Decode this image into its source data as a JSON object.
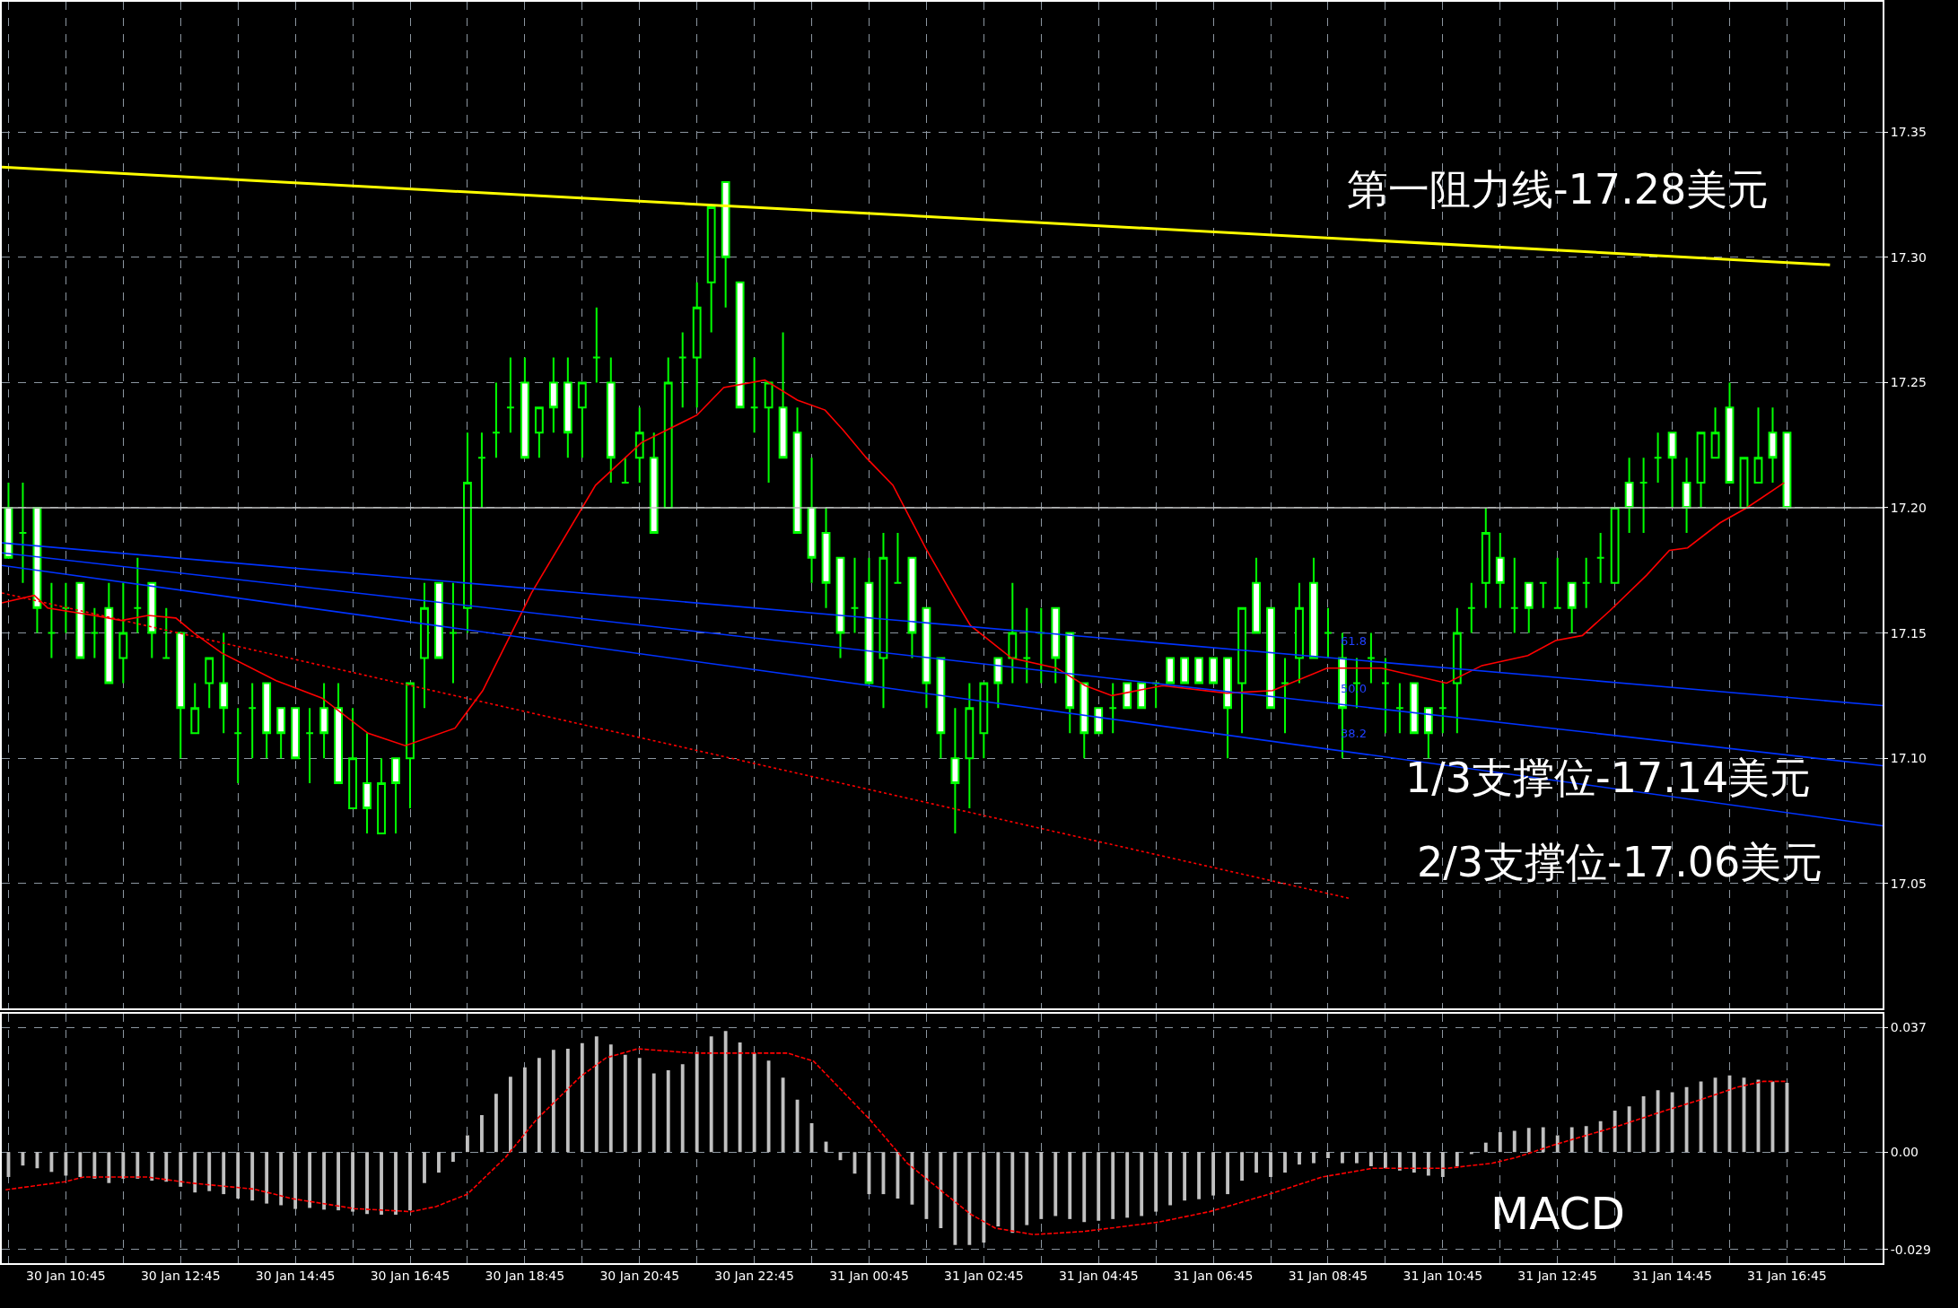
{
  "chart_data": [
    {
      "type": "candlestick",
      "color": "#00ff00",
      "x": [
        "--01-30T09:45",
        "--01-30T10:00",
        "--01-30T10:15",
        "--01-30T10:30",
        "--01-30T10:45",
        "--01-30T11:00",
        "--01-30T11:15",
        "--01-30T11:30",
        "--01-30T11:45",
        "--01-30T12:00",
        "--01-30T12:15",
        "--01-30T12:30",
        "--01-30T12:45",
        "--01-30T13:00",
        "--01-30T13:15",
        "--01-30T13:30",
        "--01-30T13:45",
        "--01-30T14:00",
        "--01-30T14:15",
        "--01-30T14:30",
        "--01-30T14:45",
        "--01-30T15:00",
        "--01-30T15:15",
        "--01-30T15:30",
        "--01-30T15:45",
        "--01-30T16:00",
        "--01-30T16:15",
        "--01-30T16:30",
        "--01-30T16:45",
        "--01-30T17:00",
        "--01-30T17:15",
        "--01-30T17:30",
        "--01-30T17:45",
        "--01-30T18:00",
        "--01-30T18:15",
        "--01-30T18:30",
        "--01-30T18:45",
        "--01-30T19:00",
        "--01-30T19:15",
        "--01-30T19:30",
        "--01-30T19:45",
        "--01-30T20:00",
        "--01-30T20:15",
        "--01-30T20:30",
        "--01-30T20:45",
        "--01-30T21:00",
        "--01-30T21:15",
        "--01-30T21:30",
        "--01-30T21:45",
        "--01-30T22:00",
        "--01-30T22:15",
        "--01-30T22:30",
        "--01-30T22:45",
        "--01-30T23:00",
        "--01-30T23:15",
        "--01-30T23:30",
        "--01-30T23:45",
        "--01-31T00:00",
        "--01-31T00:15",
        "--01-31T00:30",
        "--01-31T00:45",
        "--01-31T01:00",
        "--01-31T01:15",
        "--01-31T01:30",
        "--01-31T01:45",
        "--01-31T02:00",
        "--01-31T02:15",
        "--01-31T02:30",
        "--01-31T02:45",
        "--01-31T03:00",
        "--01-31T03:15",
        "--01-31T03:30",
        "--01-31T03:45",
        "--01-31T04:00",
        "--01-31T04:15",
        "--01-31T04:30",
        "--01-31T04:45",
        "--01-31T05:00",
        "--01-31T05:15",
        "--01-31T05:30",
        "--01-31T05:45",
        "--01-31T06:00",
        "--01-31T06:15",
        "--01-31T06:30",
        "--01-31T06:45",
        "--01-31T07:00",
        "--01-31T07:15",
        "--01-31T07:30",
        "--01-31T07:45",
        "--01-31T08:00",
        "--01-31T08:15",
        "--01-31T08:30",
        "--01-31T08:45",
        "--01-31T09:00",
        "--01-31T09:15",
        "--01-31T09:30",
        "--01-31T09:45",
        "--01-31T10:00",
        "--01-31T10:15",
        "--01-31T10:30",
        "--01-31T10:45",
        "--01-31T11:00",
        "--01-31T11:15",
        "--01-31T11:30",
        "--01-31T11:45",
        "--01-31T12:00",
        "--01-31T12:15",
        "--01-31T12:30",
        "--01-31T12:45",
        "--01-31T13:00",
        "--01-31T13:15",
        "--01-31T13:30",
        "--01-31T13:45",
        "--01-31T14:00",
        "--01-31T14:15",
        "--01-31T14:30",
        "--01-31T14:45",
        "--01-31T15:00",
        "--01-31T15:15",
        "--01-31T15:30",
        "--01-31T15:45",
        "--01-31T16:00",
        "--01-31T16:15",
        "--01-31T16:30",
        "--01-31T16:45"
      ],
      "ohlc": [
        [
          17.2,
          17.21,
          17.18,
          17.18
        ],
        [
          17.19,
          17.21,
          17.17,
          17.19
        ],
        [
          17.2,
          17.2,
          17.15,
          17.16
        ],
        [
          17.15,
          17.17,
          17.14,
          17.15
        ],
        [
          17.16,
          17.17,
          17.15,
          17.16
        ],
        [
          17.17,
          17.17,
          17.14,
          17.14
        ],
        [
          17.15,
          17.16,
          17.14,
          17.15
        ],
        [
          17.16,
          17.17,
          17.13,
          17.13
        ],
        [
          17.14,
          17.17,
          17.13,
          17.15
        ],
        [
          17.16,
          17.18,
          17.15,
          17.16
        ],
        [
          17.17,
          17.17,
          17.14,
          17.15
        ],
        [
          17.14,
          17.16,
          17.14,
          17.14
        ],
        [
          17.15,
          17.15,
          17.1,
          17.12
        ],
        [
          17.11,
          17.13,
          17.11,
          17.12
        ],
        [
          17.13,
          17.14,
          17.12,
          17.14
        ],
        [
          17.13,
          17.15,
          17.11,
          17.12
        ],
        [
          17.11,
          17.12,
          17.09,
          17.11
        ],
        [
          17.12,
          17.13,
          17.1,
          17.12
        ],
        [
          17.13,
          17.13,
          17.1,
          17.11
        ],
        [
          17.12,
          17.12,
          17.1,
          17.11
        ],
        [
          17.12,
          17.12,
          17.1,
          17.1
        ],
        [
          17.11,
          17.12,
          17.09,
          17.11
        ],
        [
          17.12,
          17.13,
          17.1,
          17.11
        ],
        [
          17.12,
          17.13,
          17.09,
          17.09
        ],
        [
          17.08,
          17.12,
          17.08,
          17.1
        ],
        [
          17.09,
          17.11,
          17.07,
          17.08
        ],
        [
          17.07,
          17.1,
          17.07,
          17.09
        ],
        [
          17.1,
          17.1,
          17.07,
          17.09
        ],
        [
          17.1,
          17.13,
          17.08,
          17.13
        ],
        [
          17.14,
          17.17,
          17.12,
          17.16
        ],
        [
          17.17,
          17.17,
          17.14,
          17.14
        ],
        [
          17.15,
          17.17,
          17.13,
          17.15
        ],
        [
          17.16,
          17.23,
          17.15,
          17.21
        ],
        [
          17.22,
          17.23,
          17.2,
          17.22
        ],
        [
          17.23,
          17.25,
          17.22,
          17.23
        ],
        [
          17.24,
          17.26,
          17.23,
          17.24
        ],
        [
          17.25,
          17.26,
          17.22,
          17.22
        ],
        [
          17.23,
          17.24,
          17.22,
          17.24
        ],
        [
          17.25,
          17.26,
          17.23,
          17.24
        ],
        [
          17.25,
          17.26,
          17.22,
          17.23
        ],
        [
          17.24,
          17.25,
          17.22,
          17.25
        ],
        [
          17.26,
          17.28,
          17.25,
          17.26
        ],
        [
          17.25,
          17.26,
          17.21,
          17.22
        ],
        [
          17.21,
          17.22,
          17.21,
          17.21
        ],
        [
          17.22,
          17.24,
          17.21,
          17.23
        ],
        [
          17.22,
          17.23,
          17.19,
          17.19
        ],
        [
          17.2,
          17.26,
          17.2,
          17.25
        ],
        [
          17.26,
          17.27,
          17.24,
          17.26
        ],
        [
          17.26,
          17.29,
          17.24,
          17.28
        ],
        [
          17.29,
          17.32,
          17.27,
          17.32
        ],
        [
          17.33,
          17.33,
          17.28,
          17.3
        ],
        [
          17.29,
          17.29,
          17.24,
          17.24
        ],
        [
          17.24,
          17.26,
          17.23,
          17.24
        ],
        [
          17.24,
          17.25,
          17.21,
          17.25
        ],
        [
          17.24,
          17.27,
          17.22,
          17.22
        ],
        [
          17.23,
          17.24,
          17.19,
          17.19
        ],
        [
          17.2,
          17.22,
          17.17,
          17.18
        ],
        [
          17.19,
          17.2,
          17.16,
          17.17
        ],
        [
          17.18,
          17.18,
          17.14,
          17.15
        ],
        [
          17.16,
          17.18,
          17.15,
          17.16
        ],
        [
          17.17,
          17.18,
          17.13,
          17.13
        ],
        [
          17.14,
          17.19,
          17.12,
          17.18
        ],
        [
          17.17,
          17.19,
          17.17,
          17.17
        ],
        [
          17.18,
          17.18,
          17.14,
          17.15
        ],
        [
          17.16,
          17.16,
          17.12,
          17.13
        ],
        [
          17.14,
          17.14,
          17.1,
          17.11
        ],
        [
          17.1,
          17.12,
          17.07,
          17.09
        ],
        [
          17.1,
          17.13,
          17.08,
          17.12
        ],
        [
          17.11,
          17.13,
          17.1,
          17.13
        ],
        [
          17.14,
          17.14,
          17.12,
          17.13
        ],
        [
          17.14,
          17.17,
          17.13,
          17.15
        ],
        [
          17.14,
          17.16,
          17.13,
          17.14
        ],
        [
          17.15,
          17.16,
          17.13,
          17.15
        ],
        [
          17.16,
          17.16,
          17.13,
          17.14
        ],
        [
          17.15,
          17.15,
          17.11,
          17.12
        ],
        [
          17.13,
          17.13,
          17.1,
          17.11
        ],
        [
          17.12,
          17.12,
          17.11,
          17.11
        ],
        [
          17.12,
          17.13,
          17.11,
          17.12
        ],
        [
          17.13,
          17.13,
          17.12,
          17.12
        ],
        [
          17.13,
          17.13,
          17.12,
          17.12
        ],
        [
          17.13,
          17.13,
          17.12,
          17.13
        ],
        [
          17.14,
          17.14,
          17.13,
          17.13
        ],
        [
          17.14,
          17.14,
          17.13,
          17.13
        ],
        [
          17.14,
          17.14,
          17.13,
          17.13
        ],
        [
          17.14,
          17.14,
          17.13,
          17.13
        ],
        [
          17.14,
          17.14,
          17.1,
          17.12
        ],
        [
          17.13,
          17.16,
          17.11,
          17.16
        ],
        [
          17.17,
          17.18,
          17.15,
          17.15
        ],
        [
          17.16,
          17.16,
          17.12,
          17.12
        ],
        [
          17.13,
          17.14,
          17.11,
          17.13
        ],
        [
          17.14,
          17.17,
          17.13,
          17.16
        ],
        [
          17.17,
          17.18,
          17.14,
          17.14
        ],
        [
          17.15,
          17.16,
          17.14,
          17.15
        ],
        [
          17.14,
          17.15,
          17.1,
          17.12
        ],
        [
          17.13,
          17.14,
          17.12,
          17.13
        ],
        [
          17.14,
          17.15,
          17.13,
          17.14
        ],
        [
          17.13,
          17.14,
          17.11,
          17.13
        ],
        [
          17.12,
          17.13,
          17.11,
          17.12
        ],
        [
          17.13,
          17.13,
          17.11,
          17.11
        ],
        [
          17.12,
          17.12,
          17.1,
          17.11
        ],
        [
          17.12,
          17.13,
          17.11,
          17.12
        ],
        [
          17.13,
          17.16,
          17.11,
          17.15
        ],
        [
          17.16,
          17.17,
          17.15,
          17.16
        ],
        [
          17.17,
          17.2,
          17.16,
          17.19
        ],
        [
          17.18,
          17.19,
          17.16,
          17.17
        ],
        [
          17.16,
          17.18,
          17.15,
          17.16
        ],
        [
          17.17,
          17.17,
          17.15,
          17.16
        ],
        [
          17.17,
          17.17,
          17.16,
          17.17
        ],
        [
          17.16,
          17.18,
          17.16,
          17.16
        ],
        [
          17.17,
          17.17,
          17.15,
          17.16
        ],
        [
          17.17,
          17.18,
          17.16,
          17.17
        ],
        [
          17.18,
          17.19,
          17.17,
          17.18
        ],
        [
          17.17,
          17.2,
          17.17,
          17.2
        ],
        [
          17.21,
          17.22,
          17.19,
          17.2
        ],
        [
          17.21,
          17.22,
          17.19,
          17.21
        ],
        [
          17.22,
          17.23,
          17.21,
          17.22
        ],
        [
          17.23,
          17.23,
          17.2,
          17.22
        ],
        [
          17.21,
          17.22,
          17.19,
          17.2
        ],
        [
          17.21,
          17.23,
          17.2,
          17.23
        ],
        [
          17.22,
          17.24,
          17.22,
          17.23
        ],
        [
          17.24,
          17.25,
          17.21,
          17.21
        ],
        [
          17.2,
          17.22,
          17.2,
          17.22
        ],
        [
          17.21,
          17.24,
          17.21,
          17.22
        ],
        [
          17.23,
          17.24,
          17.21,
          17.22
        ],
        [
          17.23,
          17.23,
          17.2,
          17.2
        ]
      ],
      "series": [
        {
          "type": "line",
          "color": "#ff0000",
          "line_style": "solid",
          "x": [
            "--01-30T09:38",
            "--01-30T10:12",
            "--01-30T10:26",
            "--01-30T11:14",
            "--01-30T11:43",
            "--01-30T12:11",
            "--01-30T12:40",
            "--01-30T12:59",
            "--01-30T13:28",
            "--01-30T14:25",
            "--01-30T15:13",
            "--01-30T16:01",
            "--01-30T16:40",
            "--01-30T17:32",
            "--01-30T18:01",
            "--01-30T18:52",
            "--01-30T19:59",
            "--01-30T20:47",
            "--01-30T21:45",
            "--01-30T22:13",
            "--01-30T22:56",
            "--01-30T23:30",
            "--01-30T23:59",
            "--01-31T00:18",
            "--01-31T00:42",
            "--01-31T01:10",
            "--01-31T01:44",
            "--01-31T02:17",
            "--01-31T02:31",
            "--01-31T03:14",
            "--01-31T04:01",
            "--01-31T04:31",
            "--01-31T04:59",
            "--01-31T05:52",
            "--01-31T06:59",
            "--01-31T07:47",
            "--01-31T08:44",
            "--01-31T09:41",
            "--01-31T10:49",
            "--01-31T11:26",
            "--01-31T12:14",
            "--01-31T12:43",
            "--01-31T13:11",
            "--01-31T13:40",
            "--01-31T14:18",
            "--01-31T14:42",
            "--01-31T15:01",
            "--01-31T15:35",
            "--01-31T16:03",
            "--01-31T16:42"
          ],
          "values": [
            17.162,
            17.165,
            17.16,
            17.157,
            17.155,
            17.157,
            17.156,
            17.15,
            17.142,
            17.131,
            17.124,
            17.11,
            17.105,
            17.112,
            17.127,
            17.166,
            17.209,
            17.226,
            17.237,
            17.248,
            17.251,
            17.243,
            17.239,
            17.231,
            17.22,
            17.209,
            17.184,
            17.162,
            17.153,
            17.14,
            17.136,
            17.129,
            17.125,
            17.129,
            17.126,
            17.127,
            17.136,
            17.136,
            17.13,
            17.137,
            17.141,
            17.147,
            17.149,
            17.159,
            17.173,
            17.183,
            17.184,
            17.194,
            17.2,
            17.21
          ]
        },
        {
          "type": "line",
          "color": "#ff0000",
          "line_style": "dotted",
          "x": [
            "--01-30T09:38",
            "--01-31T09:08"
          ],
          "values": [
            17.166,
            17.044
          ]
        },
        {
          "type": "line",
          "color": "#0033ff",
          "line_style": "solid",
          "x": [
            "--01-30T09:38",
            "--01-31T18:25"
          ],
          "values": [
            17.186,
            17.121
          ]
        },
        {
          "type": "line",
          "color": "#0033ff",
          "line_style": "solid",
          "x": [
            "--01-30T09:38",
            "--01-31T18:25"
          ],
          "values": [
            17.182,
            17.097
          ]
        },
        {
          "type": "line",
          "color": "#0033ff",
          "line_style": "solid",
          "x": [
            "--01-30T09:38",
            "--01-31T18:25"
          ],
          "values": [
            17.177,
            17.073
          ]
        },
        {
          "type": "line",
          "color": "#ffff00",
          "line_style": "solid",
          "x": [
            "--01-30T09:38",
            "--01-31T17:30"
          ],
          "values": [
            17.336,
            17.297
          ]
        }
      ],
      "xlim": [
        "--01-30T09:38",
        "--01-31T18:25"
      ],
      "xticks": [
        {
          "value": "--01-30T09:45",
          "label": null
        },
        {
          "value": "--01-30T10:45",
          "label": "30 Jan 10:45"
        },
        {
          "value": "--01-30T11:45",
          "label": null
        },
        {
          "value": "--01-30T12:45",
          "label": "30 Jan 12:45"
        },
        {
          "value": "--01-30T13:45",
          "label": null
        },
        {
          "value": "--01-30T14:45",
          "label": "30 Jan 14:45"
        },
        {
          "value": "--01-30T15:45",
          "label": null
        },
        {
          "value": "--01-30T16:45",
          "label": "30 Jan 16:45"
        },
        {
          "value": "--01-30T17:45",
          "label": null
        },
        {
          "value": "--01-30T18:45",
          "label": "30 Jan 18:45"
        },
        {
          "value": "--01-30T19:45",
          "label": null
        },
        {
          "value": "--01-30T20:45",
          "label": "30 Jan 20:45"
        },
        {
          "value": "--01-30T21:45",
          "label": null
        },
        {
          "value": "--01-30T22:45",
          "label": "30 Jan 22:45"
        },
        {
          "value": "--01-30T23:45",
          "label": null
        },
        {
          "value": "--01-31T00:45",
          "label": "31 Jan 00:45"
        },
        {
          "value": "--01-31T01:45",
          "label": null
        },
        {
          "value": "--01-31T02:45",
          "label": "31 Jan 02:45"
        },
        {
          "value": "--01-31T03:45",
          "label": null
        },
        {
          "value": "--01-31T04:45",
          "label": "31 Jan 04:45"
        },
        {
          "value": "--01-31T05:45",
          "label": null
        },
        {
          "value": "--01-31T06:45",
          "label": "31 Jan 06:45"
        },
        {
          "value": "--01-31T07:45",
          "label": null
        },
        {
          "value": "--01-31T08:45",
          "label": "31 Jan 08:45"
        },
        {
          "value": "--01-31T09:45",
          "label": null
        },
        {
          "value": "--01-31T10:45",
          "label": "31 Jan 10:45"
        },
        {
          "value": "--01-31T11:45",
          "label": null
        },
        {
          "value": "--01-31T12:45",
          "label": "31 Jan 12:45"
        },
        {
          "value": "--01-31T13:45",
          "label": null
        },
        {
          "value": "--01-31T14:45",
          "label": "31 Jan 14:45"
        },
        {
          "value": "--01-31T15:45",
          "label": null
        },
        {
          "value": "--01-31T16:45",
          "label": "31 Jan 16:45"
        },
        {
          "value": "--01-31T17:45",
          "label": null
        }
      ],
      "ylim": [
        17.0,
        17.402
      ],
      "yticks": [
        17.05,
        {
          "value": 17.1,
          "label": "17.10"
        },
        17.15,
        {
          "value": 17.2,
          "label": "17.20"
        },
        17.25,
        {
          "value": 17.3,
          "label": "17.30"
        },
        17.35
      ],
      "tick_labels": "y",
      "grid": true,
      "ref_lines": [
        {
          "axis": "y",
          "value": 17.2,
          "color": "#c0c0c0"
        }
      ],
      "annotations": [
        "第一阻力线-17.28美元",
        "1/3支撑位-17.14美元",
        "2/3支撑位-17.06美元",
        "61.8",
        "50.0",
        "38.2"
      ]
    },
    {
      "type": "bar",
      "series": [
        {
          "type": "bar",
          "color": "#c0c0c0",
          "x": [
            "--01-30T09:45",
            "--01-30T10:00",
            "--01-30T10:15",
            "--01-30T10:30",
            "--01-30T10:45",
            "--01-30T11:00",
            "--01-30T11:15",
            "--01-30T11:30",
            "--01-30T11:45",
            "--01-30T12:00",
            "--01-30T12:15",
            "--01-30T12:30",
            "--01-30T12:45",
            "--01-30T13:00",
            "--01-30T13:15",
            "--01-30T13:30",
            "--01-30T13:45",
            "--01-30T14:00",
            "--01-30T14:15",
            "--01-30T14:30",
            "--01-30T14:45",
            "--01-30T15:00",
            "--01-30T15:15",
            "--01-30T15:30",
            "--01-30T15:45",
            "--01-30T16:00",
            "--01-30T16:15",
            "--01-30T16:30",
            "--01-30T16:45",
            "--01-30T17:00",
            "--01-30T17:15",
            "--01-30T17:30",
            "--01-30T17:45",
            "--01-30T18:00",
            "--01-30T18:15",
            "--01-30T18:30",
            "--01-30T18:45",
            "--01-30T19:00",
            "--01-30T19:15",
            "--01-30T19:30",
            "--01-30T19:45",
            "--01-30T20:00",
            "--01-30T20:15",
            "--01-30T20:30",
            "--01-30T20:45",
            "--01-30T21:00",
            "--01-30T21:15",
            "--01-30T21:30",
            "--01-30T21:45",
            "--01-30T22:00",
            "--01-30T22:15",
            "--01-30T22:30",
            "--01-30T22:45",
            "--01-30T23:00",
            "--01-30T23:15",
            "--01-30T23:30",
            "--01-30T23:45",
            "--01-31T00:00",
            "--01-31T00:15",
            "--01-31T00:30",
            "--01-31T00:45",
            "--01-31T01:00",
            "--01-31T01:15",
            "--01-31T01:30",
            "--01-31T01:45",
            "--01-31T02:00",
            "--01-31T02:15",
            "--01-31T02:30",
            "--01-31T02:45",
            "--01-31T03:00",
            "--01-31T03:15",
            "--01-31T03:30",
            "--01-31T03:45",
            "--01-31T04:00",
            "--01-31T04:15",
            "--01-31T04:30",
            "--01-31T04:45",
            "--01-31T05:00",
            "--01-31T05:15",
            "--01-31T05:30",
            "--01-31T05:45",
            "--01-31T06:00",
            "--01-31T06:15",
            "--01-31T06:30",
            "--01-31T06:45",
            "--01-31T07:00",
            "--01-31T07:15",
            "--01-31T07:30",
            "--01-31T07:45",
            "--01-31T08:00",
            "--01-31T08:15",
            "--01-31T08:30",
            "--01-31T08:45",
            "--01-31T09:00",
            "--01-31T09:15",
            "--01-31T09:30",
            "--01-31T09:45",
            "--01-31T10:00",
            "--01-31T10:15",
            "--01-31T10:30",
            "--01-31T10:45",
            "--01-31T11:00",
            "--01-31T11:15",
            "--01-31T11:30",
            "--01-31T11:45",
            "--01-31T12:00",
            "--01-31T12:15",
            "--01-31T12:30",
            "--01-31T12:45",
            "--01-31T13:00",
            "--01-31T13:15",
            "--01-31T13:30",
            "--01-31T13:45",
            "--01-31T14:00",
            "--01-31T14:15",
            "--01-31T14:30",
            "--01-31T14:45",
            "--01-31T15:00",
            "--01-31T15:15",
            "--01-31T15:30",
            "--01-31T15:45",
            "--01-31T16:00",
            "--01-31T16:15",
            "--01-31T16:30",
            "--01-31T16:45"
          ],
          "values": [
            -0.0074,
            -0.004,
            -0.0048,
            -0.0059,
            -0.007,
            -0.0074,
            -0.0079,
            -0.0092,
            -0.0079,
            -0.0079,
            -0.0085,
            -0.0088,
            -0.0103,
            -0.012,
            -0.0116,
            -0.0125,
            -0.0138,
            -0.0144,
            -0.0153,
            -0.0158,
            -0.0169,
            -0.0166,
            -0.0171,
            -0.0173,
            -0.0177,
            -0.0184,
            -0.0186,
            -0.0186,
            -0.0173,
            -0.0092,
            -0.0061,
            -0.0029,
            0.005,
            0.011,
            0.0173,
            0.0224,
            0.0252,
            0.028,
            0.0304,
            0.0307,
            0.0324,
            0.0344,
            0.032,
            0.0289,
            0.028,
            0.0234,
            0.0243,
            0.0261,
            0.0298,
            0.0344,
            0.036,
            0.0326,
            0.0294,
            0.0272,
            0.0221,
            0.0156,
            0.0086,
            0.0031,
            -0.0024,
            -0.0064,
            -0.0125,
            -0.0125,
            -0.0138,
            -0.0156,
            -0.0199,
            -0.0226,
            -0.0276,
            -0.0276,
            -0.0269,
            -0.0221,
            -0.024,
            -0.0217,
            -0.0199,
            -0.019,
            -0.0199,
            -0.0208,
            -0.0204,
            -0.0199,
            -0.0195,
            -0.019,
            -0.0177,
            -0.0158,
            -0.0144,
            -0.014,
            -0.0129,
            -0.0125,
            -0.0085,
            -0.0061,
            -0.0074,
            -0.0061,
            -0.0037,
            -0.0033,
            -0.0018,
            -0.0033,
            -0.0033,
            -0.0042,
            -0.0048,
            -0.0055,
            -0.0061,
            -0.007,
            -0.0074,
            -0.0042,
            -0.0006,
            0.0028,
            0.0059,
            0.0063,
            0.0072,
            0.0074,
            0.005,
            0.0074,
            0.0077,
            0.0092,
            0.0123,
            0.0136,
            0.0166,
            0.0184,
            0.0178,
            0.0193,
            0.021,
            0.0221,
            0.0228,
            0.0221,
            0.0215,
            0.021,
            0.0206
          ]
        },
        {
          "type": "line",
          "color": "#ff0000",
          "line_style": "dashed",
          "x": [
            "--01-30T09:42",
            "--01-30T10:44",
            "--01-30T11:04",
            "--01-30T12:10",
            "--01-30T12:56",
            "--01-30T14:02",
            "--01-30T14:41",
            "--01-30T15:47",
            "--01-30T16:46",
            "--01-30T17:12",
            "--01-30T17:45",
            "--01-30T18:25",
            "--01-30T18:57",
            "--01-30T19:43",
            "--01-30T20:10",
            "--01-30T20:43",
            "--01-30T21:42",
            "--01-30T23:20",
            "--01-30T23:47",
            "--01-31T00:46",
            "--01-31T01:25",
            "--01-31T02:05",
            "--01-31T02:31",
            "--01-31T02:57",
            "--01-31T03:37",
            "--01-31T04:29",
            "--01-31T05:48",
            "--01-31T06:41",
            "--01-31T07:47",
            "--01-31T08:39",
            "--01-31T09:32",
            "--01-31T10:50",
            "--01-31T11:37",
            "--01-31T12:03",
            "--01-31T12:42",
            "--01-31T13:48",
            "--01-31T14:34",
            "--01-31T15:14",
            "--01-31T15:53",
            "--01-31T16:20",
            "--01-31T16:44"
          ],
          "values": [
            -0.0112,
            -0.0088,
            -0.0074,
            -0.0074,
            -0.0092,
            -0.011,
            -0.0138,
            -0.0168,
            -0.0177,
            -0.0162,
            -0.0125,
            -0.0015,
            0.0096,
            0.0224,
            0.028,
            0.0307,
            0.0294,
            0.0294,
            0.027,
            0.0096,
            -0.0033,
            -0.0125,
            -0.0184,
            -0.0226,
            -0.0245,
            -0.0236,
            -0.0208,
            -0.0177,
            -0.0122,
            -0.0074,
            -0.0048,
            -0.0048,
            -0.0033,
            -0.0015,
            0.0022,
            0.0077,
            0.012,
            0.0155,
            0.0193,
            0.021,
            0.021
          ]
        }
      ],
      "xlim": [
        "--01-30T09:38",
        "--01-31T18:25"
      ],
      "xticks": [
        {
          "value": "--01-30T09:45",
          "label": null
        },
        {
          "value": "--01-30T10:45",
          "label": "30 Jan 10:45"
        },
        {
          "value": "--01-30T11:45",
          "label": null
        },
        {
          "value": "--01-30T12:45",
          "label": "30 Jan 12:45"
        },
        {
          "value": "--01-30T13:45",
          "label": null
        },
        {
          "value": "--01-30T14:45",
          "label": "30 Jan 14:45"
        },
        {
          "value": "--01-30T15:45",
          "label": null
        },
        {
          "value": "--01-30T16:45",
          "label": "30 Jan 16:45"
        },
        {
          "value": "--01-30T17:45",
          "label": null
        },
        {
          "value": "--01-30T18:45",
          "label": "30 Jan 18:45"
        },
        {
          "value": "--01-30T19:45",
          "label": null
        },
        {
          "value": "--01-30T20:45",
          "label": "30 Jan 20:45"
        },
        {
          "value": "--01-30T21:45",
          "label": null
        },
        {
          "value": "--01-30T22:45",
          "label": "30 Jan 22:45"
        },
        {
          "value": "--01-30T23:45",
          "label": null
        },
        {
          "value": "--01-31T00:45",
          "label": "31 Jan 00:45"
        },
        {
          "value": "--01-31T01:45",
          "label": null
        },
        {
          "value": "--01-31T02:45",
          "label": "31 Jan 02:45"
        },
        {
          "value": "--01-31T03:45",
          "label": null
        },
        {
          "value": "--01-31T04:45",
          "label": "31 Jan 04:45"
        },
        {
          "value": "--01-31T05:45",
          "label": null
        },
        {
          "value": "--01-31T06:45",
          "label": "31 Jan 06:45"
        },
        {
          "value": "--01-31T07:45",
          "label": null
        },
        {
          "value": "--01-31T08:45",
          "label": "31 Jan 08:45"
        },
        {
          "value": "--01-31T09:45",
          "label": null
        },
        {
          "value": "--01-31T10:45",
          "label": "31 Jan 10:45"
        },
        {
          "value": "--01-31T11:45",
          "label": null
        },
        {
          "value": "--01-31T12:45",
          "label": "31 Jan 12:45"
        },
        {
          "value": "--01-31T13:45",
          "label": null
        },
        {
          "value": "--01-31T14:45",
          "label": "31 Jan 14:45"
        },
        {
          "value": "--01-31T15:45",
          "label": null
        },
        {
          "value": "--01-31T16:45",
          "label": "31 Jan 16:45"
        },
        {
          "value": "--01-31T17:45",
          "label": null
        }
      ],
      "ylim": [
        -0.033,
        0.041
      ],
      "yticks": [
        -0.029,
        {
          "value": 0,
          "label": "0.00"
        },
        0.037
      ],
      "grid": true,
      "annotations": [
        "MACD"
      ]
    }
  ]
}
